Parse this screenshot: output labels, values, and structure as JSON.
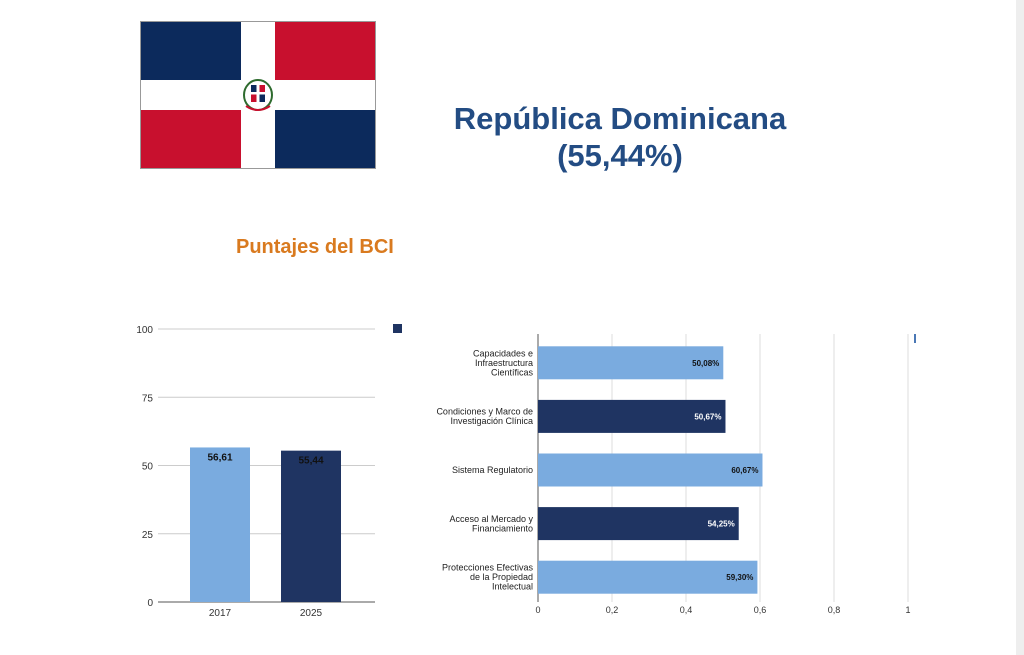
{
  "header": {
    "country_title": "República Dominicana",
    "country_score": "(55,44%)"
  },
  "section_title": "Puntajes del BCI",
  "colors": {
    "light_bar": "#7aabdf",
    "dark_bar": "#1f3462",
    "title": "#234c83",
    "subtitle": "#d97a1f",
    "flag_blue": "#0c2a5c",
    "flag_red": "#c8102e"
  },
  "flag": {
    "country": "Dominican Republic",
    "icon": "dominican-republic-flag-icon"
  },
  "chart_data": [
    {
      "type": "bar",
      "categories": [
        "2017",
        "2025"
      ],
      "values": [
        56.61,
        55.44
      ],
      "value_labels": [
        "56,61",
        "55,44"
      ],
      "bar_colors": [
        "#7aabdf",
        "#1f3462"
      ],
      "ylim": [
        0,
        100
      ],
      "yticks": [
        "0",
        "25",
        "50",
        "75",
        "100"
      ],
      "legend": "top-right",
      "grid": true
    },
    {
      "type": "bar",
      "orientation": "horizontal",
      "categories": [
        [
          "Capacidades e",
          "Infraestructura",
          "Científicas"
        ],
        [
          "Condiciones y Marco de",
          "Investigación Clínica"
        ],
        [
          "Sistema Regulatorio"
        ],
        [
          "Acceso al Mercado y",
          "Financiamiento"
        ],
        [
          "Protecciones Efectivas",
          "de la Propiedad",
          "Intelectual"
        ]
      ],
      "values": [
        0.5008,
        0.5067,
        0.6067,
        0.5425,
        0.593
      ],
      "value_labels": [
        "50,08%",
        "50,67%",
        "60,67%",
        "54,25%",
        "59,30%"
      ],
      "bar_colors": [
        "#7aabdf",
        "#1f3462",
        "#7aabdf",
        "#1f3462",
        "#7aabdf"
      ],
      "xlim": [
        0,
        1
      ],
      "xticks": [
        "0",
        "0,2",
        "0,4",
        "0,6",
        "0,8",
        "1"
      ],
      "legend": "top-right",
      "grid": true
    }
  ]
}
